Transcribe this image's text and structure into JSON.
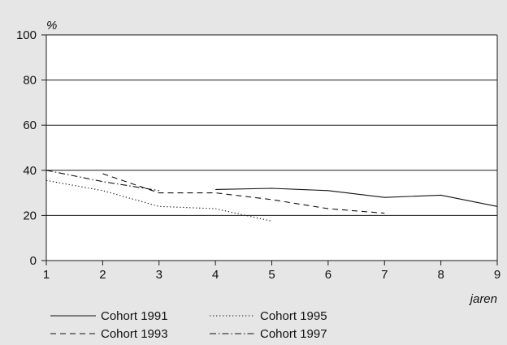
{
  "chart_data": {
    "type": "line",
    "ylabel": "%",
    "xlabel": "jaren",
    "x": [
      1,
      2,
      3,
      4,
      5,
      6,
      7,
      8,
      9
    ],
    "xlim": [
      1,
      9
    ],
    "ylim": [
      0,
      100
    ],
    "yticks": [
      0,
      20,
      40,
      60,
      80,
      100
    ],
    "grid": "horizontal",
    "legend_position": "bottom",
    "series": [
      {
        "name": "Cohort 1991",
        "dash": "solid",
        "x": [
          4,
          5,
          6,
          7,
          8,
          9
        ],
        "y": [
          31.5,
          32,
          31,
          28,
          29,
          24
        ]
      },
      {
        "name": "Cohort 1993",
        "dash": "dashed",
        "x": [
          2,
          3,
          4,
          5,
          6,
          7
        ],
        "y": [
          38.5,
          30,
          30,
          27,
          23,
          21
        ]
      },
      {
        "name": "Cohort 1995",
        "dash": "dotted",
        "x": [
          1,
          2,
          3,
          4,
          5
        ],
        "y": [
          35.5,
          31,
          24,
          23,
          17.5
        ]
      },
      {
        "name": "Cohort 1997",
        "dash": "dashdot",
        "x": [
          1,
          2,
          3
        ],
        "y": [
          40,
          35,
          31
        ]
      }
    ]
  }
}
